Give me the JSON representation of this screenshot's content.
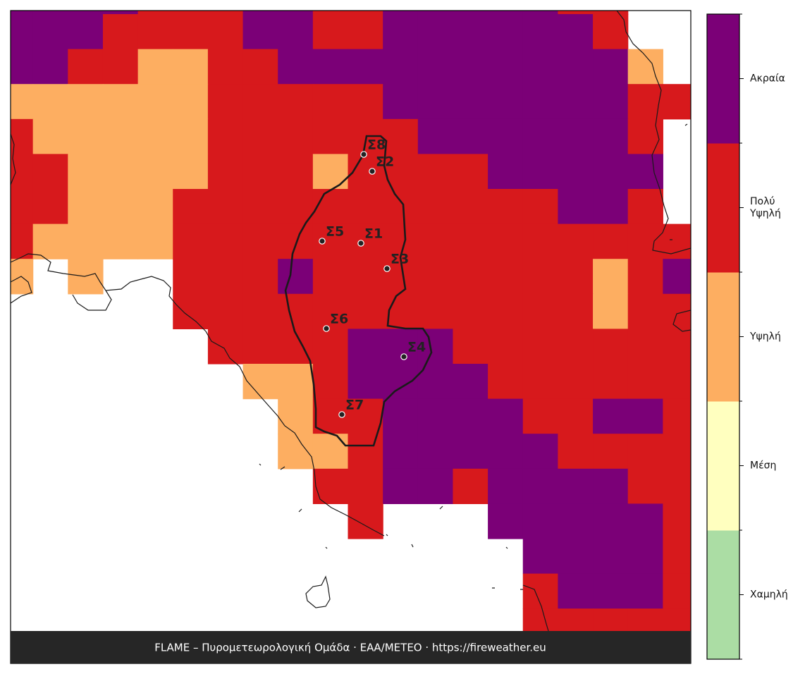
{
  "map": {
    "raster": {
      "rows": [
        [
          4,
          4,
          4,
          4,
          3,
          3,
          3,
          4,
          4,
          3,
          3,
          4,
          4,
          4,
          4,
          4,
          3,
          3,
          null,
          null
        ],
        [
          4,
          4,
          4,
          3,
          3,
          3,
          3,
          4,
          4,
          3,
          3,
          4,
          4,
          4,
          4,
          4,
          4,
          3,
          null,
          null
        ],
        [
          4,
          4,
          3,
          3,
          2,
          2,
          3,
          3,
          4,
          4,
          4,
          4,
          4,
          4,
          4,
          4,
          4,
          4,
          2,
          null
        ],
        [
          2,
          2,
          2,
          2,
          2,
          2,
          3,
          3,
          3,
          3,
          3,
          4,
          4,
          4,
          4,
          4,
          4,
          4,
          3,
          3
        ],
        [
          3,
          2,
          2,
          2,
          2,
          2,
          3,
          3,
          3,
          3,
          3,
          3,
          4,
          4,
          4,
          4,
          4,
          4,
          3,
          null
        ],
        [
          3,
          3,
          2,
          2,
          2,
          2,
          3,
          3,
          3,
          2,
          3,
          3,
          3,
          3,
          4,
          4,
          4,
          4,
          4,
          null
        ],
        [
          3,
          3,
          2,
          2,
          2,
          3,
          3,
          3,
          3,
          3,
          3,
          3,
          3,
          3,
          3,
          3,
          4,
          4,
          3,
          null
        ],
        [
          3,
          2,
          2,
          2,
          2,
          3,
          3,
          3,
          3,
          3,
          3,
          3,
          3,
          3,
          3,
          3,
          3,
          3,
          3,
          3
        ],
        [
          2,
          null,
          2,
          null,
          null,
          3,
          3,
          3,
          4,
          3,
          3,
          3,
          3,
          3,
          3,
          3,
          3,
          2,
          3,
          4
        ],
        [
          null,
          null,
          null,
          null,
          null,
          3,
          3,
          3,
          3,
          3,
          3,
          3,
          3,
          3,
          3,
          3,
          3,
          2,
          3,
          3
        ],
        [
          null,
          null,
          null,
          null,
          null,
          null,
          3,
          3,
          3,
          3,
          4,
          4,
          4,
          3,
          3,
          3,
          3,
          3,
          3,
          3
        ],
        [
          null,
          null,
          null,
          null,
          null,
          null,
          null,
          2,
          2,
          3,
          4,
          4,
          4,
          4,
          3,
          3,
          3,
          3,
          3,
          3
        ],
        [
          null,
          null,
          null,
          null,
          null,
          null,
          null,
          null,
          2,
          3,
          3,
          4,
          4,
          4,
          4,
          3,
          3,
          4,
          4,
          3
        ],
        [
          null,
          null,
          null,
          null,
          null,
          null,
          null,
          null,
          2,
          2,
          3,
          4,
          4,
          4,
          4,
          4,
          3,
          3,
          3,
          3
        ],
        [
          null,
          null,
          null,
          null,
          null,
          null,
          null,
          null,
          null,
          3,
          3,
          4,
          4,
          3,
          4,
          4,
          4,
          4,
          3,
          3
        ],
        [
          null,
          null,
          null,
          null,
          null,
          null,
          null,
          null,
          null,
          null,
          3,
          null,
          null,
          null,
          4,
          4,
          4,
          4,
          4,
          3
        ],
        [
          null,
          null,
          null,
          null,
          null,
          null,
          null,
          null,
          null,
          null,
          null,
          null,
          null,
          null,
          null,
          4,
          4,
          4,
          4,
          3
        ],
        [
          null,
          null,
          null,
          null,
          null,
          null,
          null,
          null,
          null,
          null,
          null,
          null,
          null,
          null,
          null,
          3,
          4,
          4,
          4,
          3
        ],
        [
          null,
          null,
          null,
          null,
          null,
          null,
          null,
          null,
          null,
          null,
          null,
          null,
          null,
          null,
          null,
          3,
          3,
          3,
          3,
          3
        ]
      ]
    },
    "stations": [
      "Σ1",
      "Σ2",
      "Σ3",
      "Σ4",
      "Σ5",
      "Σ6",
      "Σ7",
      "Σ8"
    ],
    "footer": "FLAME – Πυρομετεωρολογική Ομάδα · ΕΑΑ/METEO · https://fireweather.eu"
  },
  "legend": {
    "levels": [
      "Χαμηλή",
      "Μέση",
      "Υψηλή",
      "Πολύ Υψηλή",
      "Ακραία"
    ],
    "colors": [
      "#abdda4",
      "#ffffbf",
      "#fdae61",
      "#d7191c",
      "#7b0077"
    ]
  }
}
